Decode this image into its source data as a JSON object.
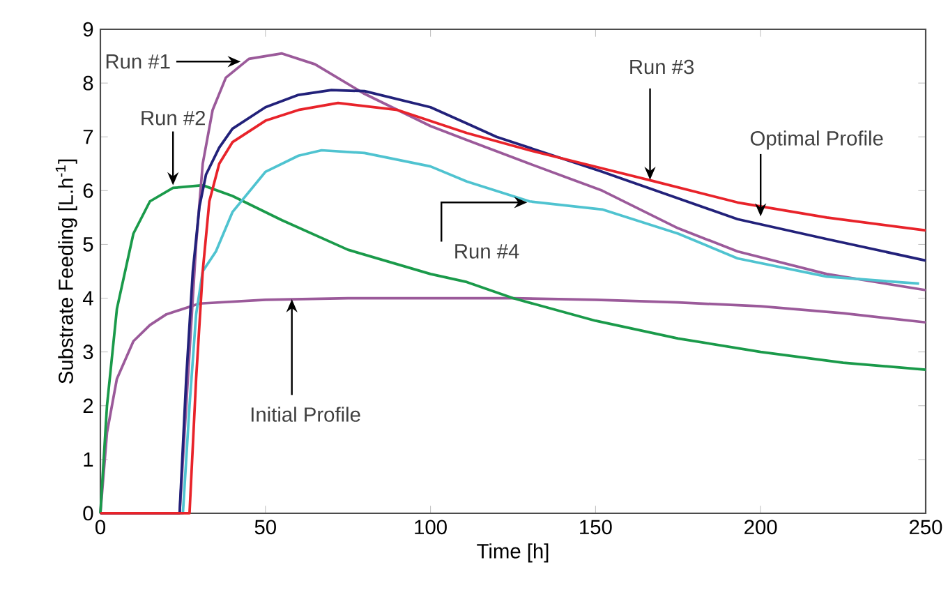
{
  "chart_data": {
    "type": "line",
    "xlabel": "Time [h]",
    "ylabel": "Substrate Feeding [L.h$^{-1}$]",
    "xlim": [
      0,
      250
    ],
    "ylim": [
      0,
      9
    ],
    "xticks": [
      0,
      50,
      100,
      150,
      200,
      250
    ],
    "yticks": [
      0,
      1,
      2,
      3,
      4,
      5,
      6,
      7,
      8,
      9
    ],
    "grid": false,
    "line_style": "solid",
    "series": [
      {
        "color": "#9b5a9a",
        "x": [
          0,
          2,
          5,
          10,
          15,
          20,
          30,
          50,
          75,
          100,
          125,
          150,
          175,
          200,
          225,
          250
        ],
        "values": [
          0,
          1.5,
          2.5,
          3.2,
          3.5,
          3.7,
          3.9,
          3.97,
          4.0,
          4.0,
          4.0,
          3.97,
          3.92,
          3.85,
          3.72,
          3.55
        ]
      },
      {
        "color": "#1a9a4a",
        "x": [
          0,
          2,
          5,
          10,
          15,
          22,
          31,
          40,
          55,
          75,
          100,
          111,
          125,
          150,
          175,
          200,
          225,
          250
        ],
        "values": [
          0,
          2,
          3.8,
          5.2,
          5.8,
          6.05,
          6.1,
          5.9,
          5.45,
          4.9,
          4.45,
          4.3,
          4.0,
          3.58,
          3.25,
          3.0,
          2.8,
          2.67
        ]
      },
      {
        "color": "#9b5a9a",
        "x": [
          0,
          24,
          27,
          29,
          31,
          34,
          38,
          45,
          55,
          65,
          80,
          100,
          111,
          130,
          152,
          175,
          193,
          220,
          250
        ],
        "values": [
          0,
          0,
          3,
          5,
          6.5,
          7.5,
          8.1,
          8.45,
          8.55,
          8.35,
          7.8,
          7.2,
          6.94,
          6.5,
          6.0,
          5.3,
          4.87,
          4.45,
          4.15
        ]
      },
      {
        "color": "#4fc3d0",
        "x": [
          0,
          25,
          27,
          29,
          31,
          35,
          40,
          50,
          60,
          67,
          80,
          100,
          111,
          130,
          152,
          175,
          193,
          220,
          248
        ],
        "values": [
          0,
          0,
          2,
          3.7,
          4.5,
          4.87,
          5.6,
          6.35,
          6.65,
          6.75,
          6.7,
          6.45,
          6.17,
          5.8,
          5.65,
          5.2,
          4.74,
          4.4,
          4.27
        ]
      },
      {
        "color": "#22217a",
        "x": [
          0,
          24,
          26,
          28,
          30,
          32,
          36,
          40,
          50,
          60,
          70,
          80,
          100,
          111,
          120,
          152,
          166,
          193,
          220,
          250
        ],
        "values": [
          0,
          0,
          2.5,
          4.5,
          5.7,
          6.3,
          6.8,
          7.15,
          7.55,
          7.78,
          7.87,
          7.85,
          7.55,
          7.25,
          7.0,
          6.35,
          6.05,
          5.47,
          5.1,
          4.7
        ]
      },
      {
        "color": "#e8232a",
        "x": [
          0,
          27,
          29,
          31,
          33,
          36,
          40,
          50,
          60,
          72,
          90,
          111,
          130,
          166,
          193,
          220,
          250
        ],
        "values": [
          0,
          0,
          2.5,
          4.5,
          5.8,
          6.5,
          6.9,
          7.3,
          7.5,
          7.63,
          7.5,
          7.07,
          6.75,
          6.2,
          5.78,
          5.5,
          5.26
        ]
      }
    ],
    "annotations": [
      {
        "text": "Run #1",
        "x": 42.5,
        "y": 8.4
      },
      {
        "text": "Run #2",
        "x": 22,
        "y": 6.1
      },
      {
        "text": "Run #3",
        "x": 166.5,
        "y": 6.2
      },
      {
        "text": "Optimal Profile",
        "x": 200,
        "y": 5.52
      },
      {
        "text": "Run #4",
        "x": 129.3,
        "y": 5.78
      },
      {
        "text": "Initial Profile",
        "x": 58,
        "y": 3.98
      }
    ]
  }
}
